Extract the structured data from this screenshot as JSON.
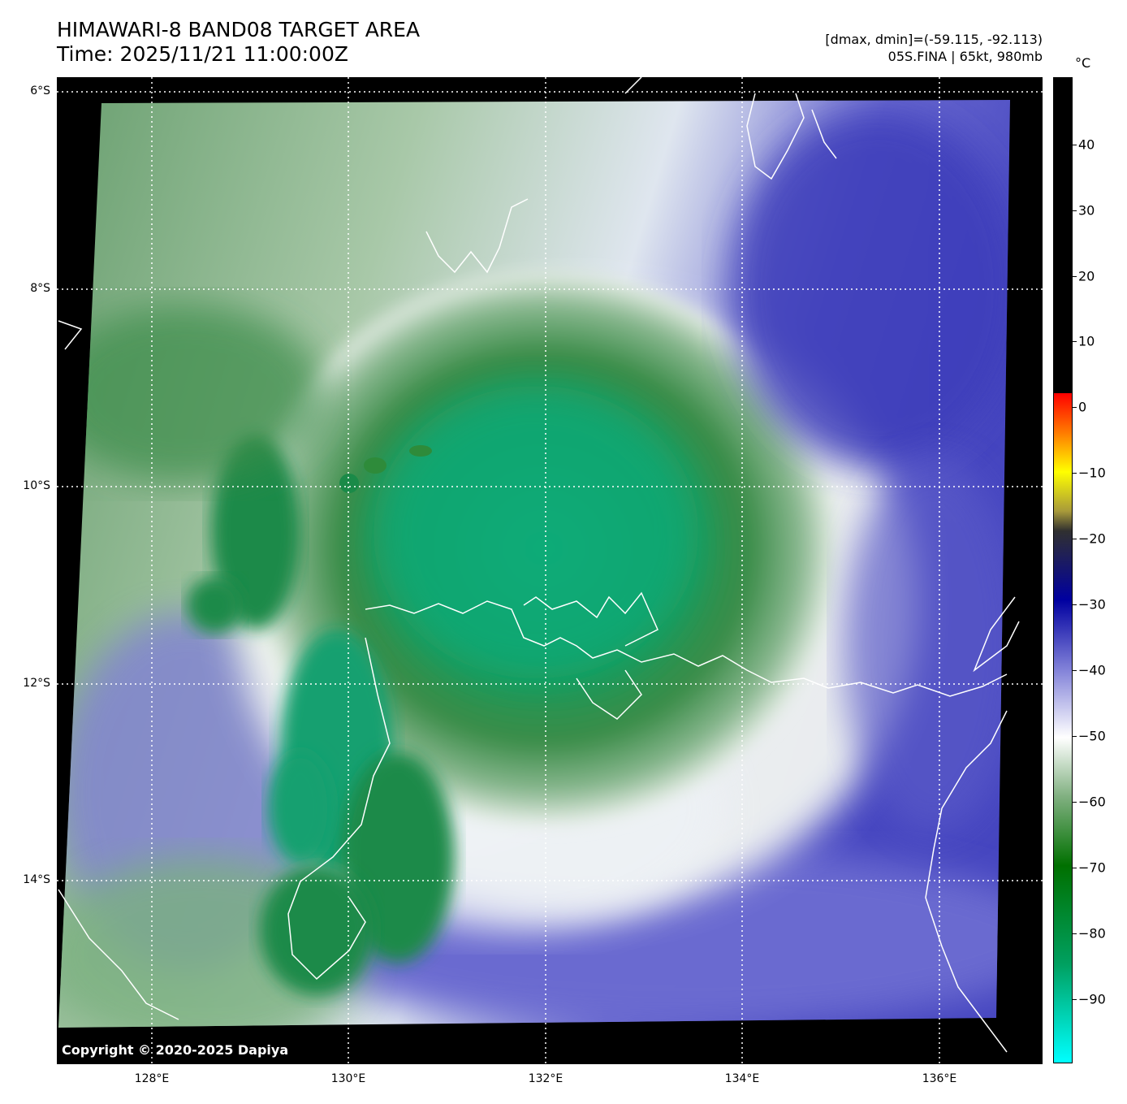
{
  "header": {
    "title_line1": "HIMAWARI-8 BAND08 TARGET AREA",
    "title_line2": "Time: 2025/11/21 11:00:00Z",
    "stats_line1": "[dmax, dmin]=(-59.115, -92.113)",
    "stats_line2": "05S.FINA | 65kt, 980mb"
  },
  "map": {
    "lat_labels": [
      "6°S",
      "8°S",
      "10°S",
      "12°S",
      "14°S"
    ],
    "lon_labels": [
      "128°E",
      "130°E",
      "132°E",
      "134°E",
      "136°E"
    ],
    "copyright": "Copyright © 2020-2025 Dapiya"
  },
  "colorbar": {
    "unit": "°C",
    "ticks": [
      "40",
      "30",
      "20",
      "10",
      "0",
      "−10",
      "−20",
      "−30",
      "−40",
      "−50",
      "−60",
      "−70",
      "−80",
      "−90"
    ]
  },
  "colors": {
    "cold_core": "#00a86b",
    "mid_green": "#2e8b3a",
    "white_band": "#f4f6f4",
    "dry_blue": "#4a4ac0",
    "coast": "#ffffff",
    "background": "#000000"
  }
}
